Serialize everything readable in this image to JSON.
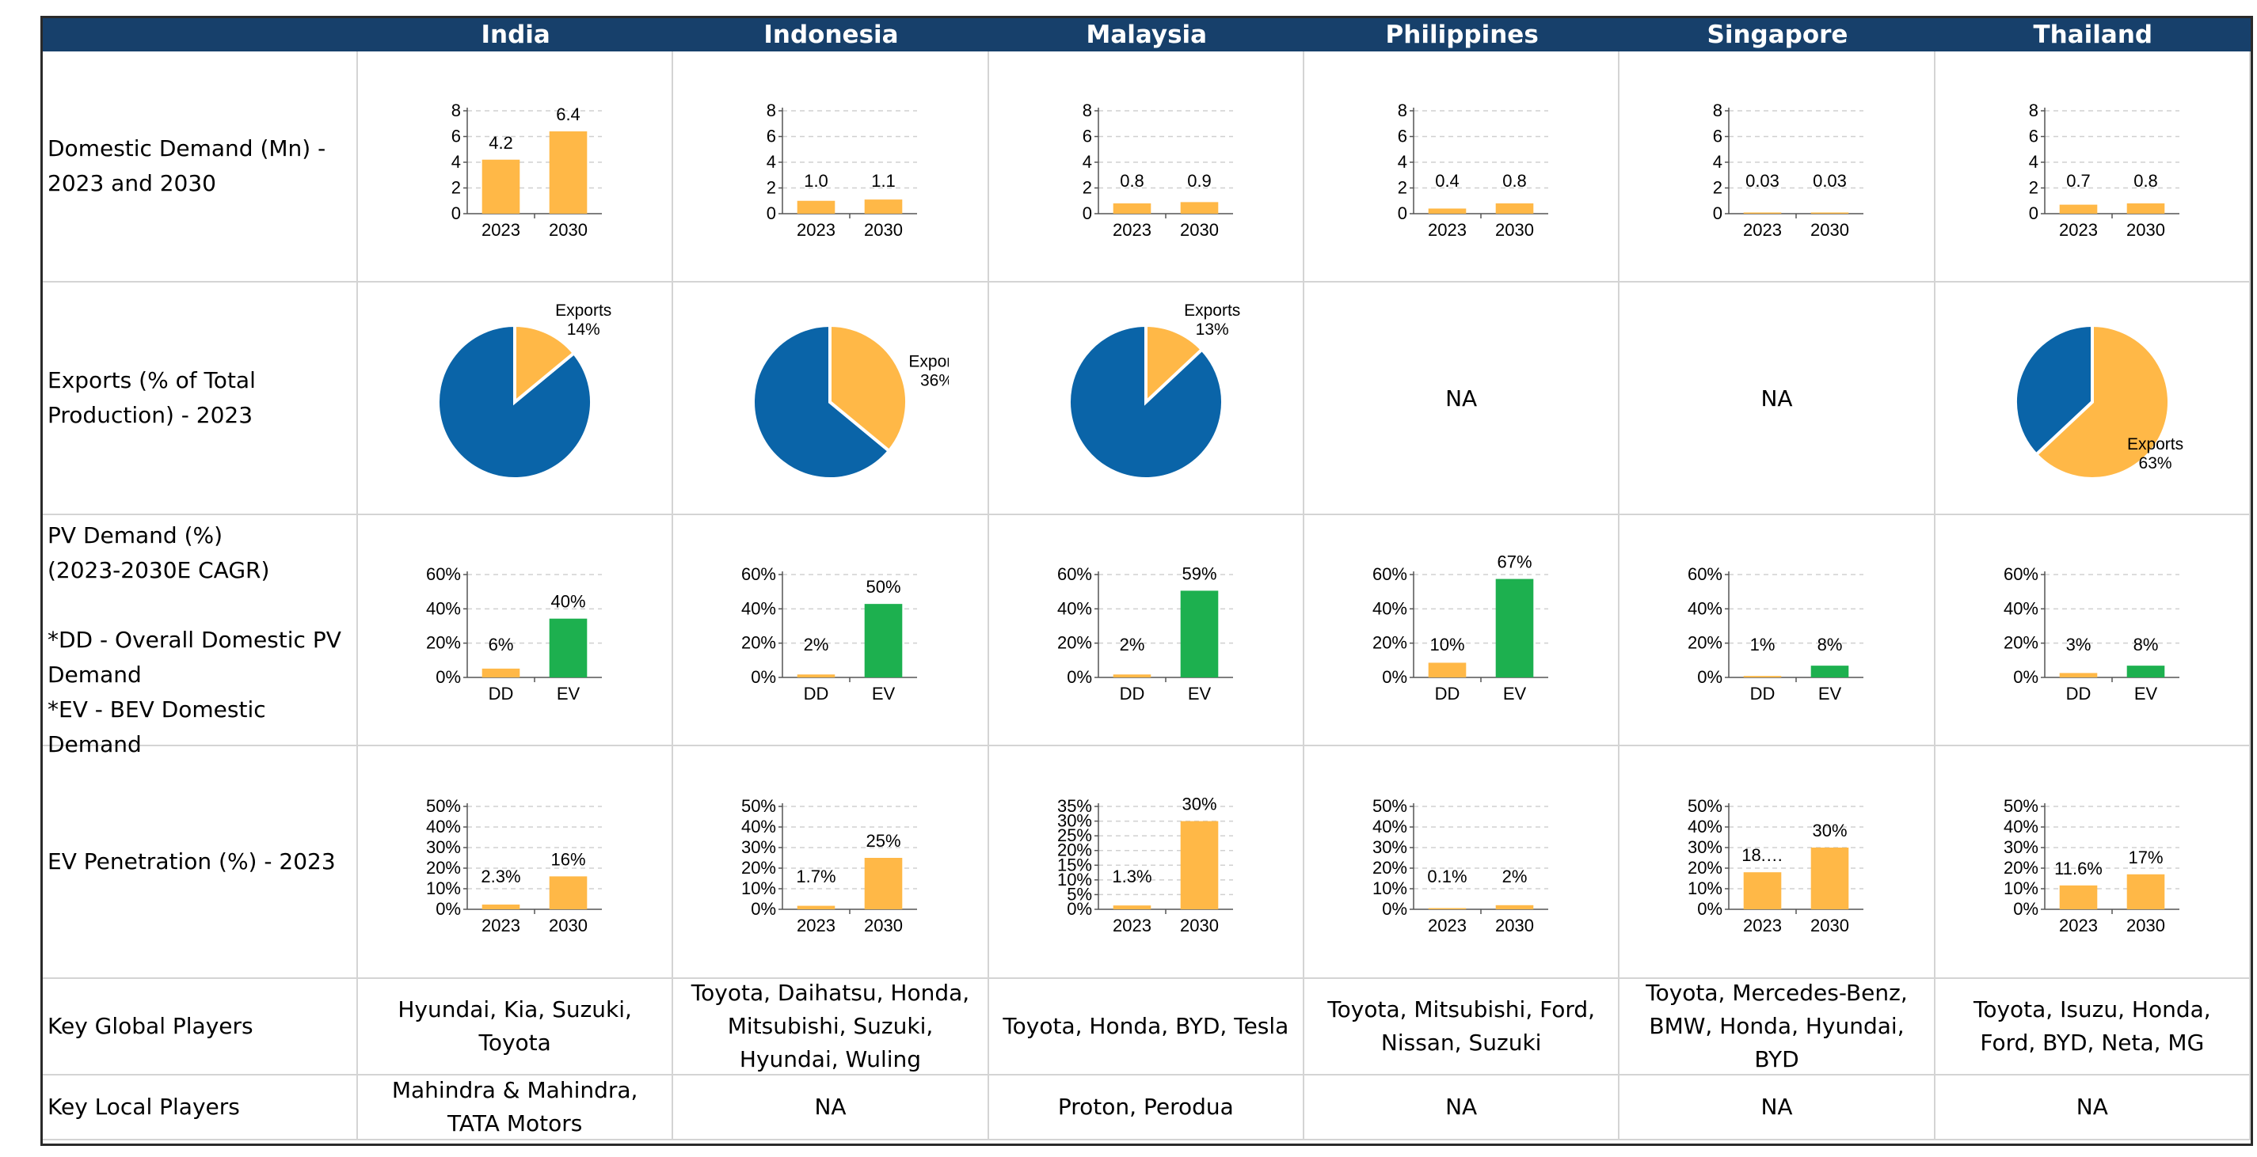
{
  "headers": [
    "India",
    "Indonesia",
    "Malaysia",
    "Philippines",
    "Singapore",
    "Thailand"
  ],
  "row_labels": {
    "domestic": "Domestic Demand (Mn) -\n2023 and 2030",
    "exports": "Exports (% of Total\nProduction) - 2023",
    "pv": "PV Demand (%)\n(2023-2030E CAGR)\n\n*DD - Overall Domestic PV\nDemand\n*EV - BEV Domestic\nDemand",
    "ev": "EV Penetration (%) - 2023",
    "global": "Key Global Players",
    "local": "Key Local Players"
  },
  "key_global_players": [
    "Hyundai, Kia, Suzuki,\nToyota",
    "Toyota, Daihatsu, Honda,\nMitsubishi, Suzuki,\nHyundai, Wuling",
    "Toyota, Honda, BYD, Tesla",
    "Toyota, Mitsubishi, Ford,\nNissan, Suzuki",
    "Toyota, Mercedes-Benz,\nBMW, Honda, Hyundai,\nBYD",
    "Toyota, Isuzu, Honda,\nFord, BYD, Neta, MG"
  ],
  "key_local_players": [
    "Mahindra & Mahindra,\nTATA Motors",
    "NA",
    "Proton, Perodua",
    "NA",
    "NA",
    "NA"
  ],
  "colors": {
    "orange": "#ffb847",
    "green": "#1db04f",
    "blue": "#0a64a8",
    "header": "#17406b"
  },
  "chart_data": [
    {
      "id": "domestic_demand",
      "type": "bar",
      "ylim": [
        0,
        8
      ],
      "yticks": [
        0,
        2,
        4,
        6,
        8
      ],
      "categories": [
        "2023",
        "2030"
      ],
      "panels": [
        {
          "country": "India",
          "values": [
            4.2,
            6.4
          ],
          "labels": [
            "4.2",
            "6.4"
          ]
        },
        {
          "country": "Indonesia",
          "values": [
            1.0,
            1.1
          ],
          "labels": [
            "1.0",
            "1.1"
          ]
        },
        {
          "country": "Malaysia",
          "values": [
            0.8,
            0.9
          ],
          "labels": [
            "0.8",
            "0.9"
          ]
        },
        {
          "country": "Philippines",
          "values": [
            0.4,
            0.8
          ],
          "labels": [
            "0.4",
            "0.8"
          ]
        },
        {
          "country": "Singapore",
          "values": [
            0.03,
            0.03
          ],
          "labels": [
            "0.03",
            "0.03"
          ]
        },
        {
          "country": "Thailand",
          "values": [
            0.7,
            0.8
          ],
          "labels": [
            "0.7",
            "0.8"
          ]
        }
      ]
    },
    {
      "id": "exports",
      "type": "pie",
      "panels": [
        {
          "country": "India",
          "slice_label": "Exports",
          "value": 14,
          "label": "14%"
        },
        {
          "country": "Indonesia",
          "slice_label": "Exports",
          "value": 36,
          "label": "36%"
        },
        {
          "country": "Malaysia",
          "slice_label": "Exports",
          "value": 13,
          "label": "13%"
        },
        {
          "country": "Philippines",
          "na": "NA"
        },
        {
          "country": "Singapore",
          "na": "NA"
        },
        {
          "country": "Thailand",
          "slice_label": "Exports",
          "value": 63,
          "label": "63%"
        }
      ]
    },
    {
      "id": "pv_demand_cagr",
      "type": "bar",
      "ylim": [
        0,
        70
      ],
      "yticks": [
        "0%",
        "20%",
        "40%",
        "60%"
      ],
      "categories": [
        "DD",
        "EV"
      ],
      "panels": [
        {
          "country": "India",
          "values": [
            6,
            40
          ],
          "labels": [
            "6%",
            "40%"
          ]
        },
        {
          "country": "Indonesia",
          "values": [
            2,
            50
          ],
          "labels": [
            "2%",
            "50%"
          ]
        },
        {
          "country": "Malaysia",
          "values": [
            2,
            59
          ],
          "labels": [
            "2%",
            "59%"
          ]
        },
        {
          "country": "Philippines",
          "values": [
            10,
            67
          ],
          "labels": [
            "10%",
            "67%"
          ]
        },
        {
          "country": "Singapore",
          "values": [
            1,
            8
          ],
          "labels": [
            "1%",
            "8%"
          ]
        },
        {
          "country": "Thailand",
          "values": [
            3,
            8
          ],
          "labels": [
            "3%",
            "8%"
          ]
        }
      ]
    },
    {
      "id": "ev_penetration",
      "type": "bar",
      "categories": [
        "2023",
        "2030"
      ],
      "panels": [
        {
          "country": "India",
          "ylim": [
            0,
            50
          ],
          "yticks": [
            "0%",
            "10%",
            "20%",
            "30%",
            "40%",
            "50%"
          ],
          "values": [
            2.3,
            16
          ],
          "labels": [
            "2.3%",
            "16%"
          ]
        },
        {
          "country": "Indonesia",
          "ylim": [
            0,
            50
          ],
          "yticks": [
            "0%",
            "10%",
            "20%",
            "30%",
            "40%",
            "50%"
          ],
          "values": [
            1.7,
            25
          ],
          "labels": [
            "1.7%",
            "25%"
          ]
        },
        {
          "country": "Malaysia",
          "ylim": [
            0,
            35
          ],
          "yticks": [
            "0%",
            "5%",
            "10%",
            "15%",
            "20%",
            "25%",
            "30%",
            "35%"
          ],
          "values": [
            1.3,
            30
          ],
          "labels": [
            "1.3%",
            "30%"
          ]
        },
        {
          "country": "Philippines",
          "ylim": [
            0,
            50
          ],
          "yticks": [
            "0%",
            "10%",
            "20%",
            "30%",
            "40%",
            "50%"
          ],
          "values": [
            0.1,
            2
          ],
          "labels": [
            "0.1%",
            "2%"
          ]
        },
        {
          "country": "Singapore",
          "ylim": [
            0,
            50
          ],
          "yticks": [
            "0%",
            "10%",
            "20%",
            "30%",
            "40%",
            "50%"
          ],
          "values": [
            18,
            30
          ],
          "labels": [
            "18.…",
            "30%"
          ]
        },
        {
          "country": "Thailand",
          "ylim": [
            0,
            50
          ],
          "yticks": [
            "0%",
            "10%",
            "20%",
            "30%",
            "40%",
            "50%"
          ],
          "values": [
            11.6,
            17
          ],
          "labels": [
            "11.6%",
            "17%"
          ]
        }
      ]
    }
  ]
}
